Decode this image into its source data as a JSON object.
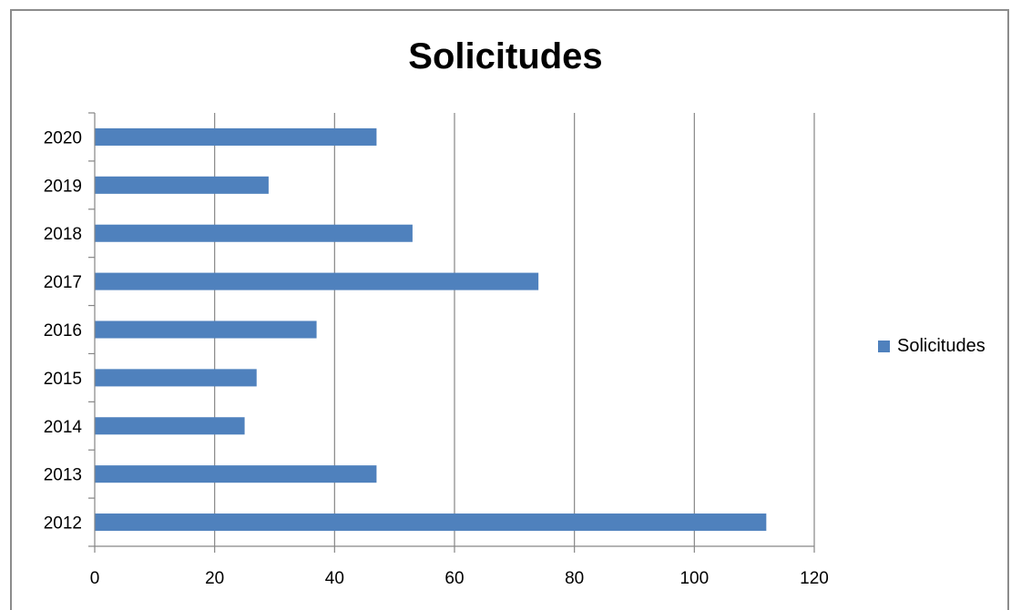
{
  "chart_data": {
    "type": "bar",
    "orientation": "horizontal",
    "title": "Solicitudes",
    "categories": [
      "2012",
      "2013",
      "2014",
      "2015",
      "2016",
      "2017",
      "2018",
      "2019",
      "2020"
    ],
    "series": [
      {
        "name": "Solicitudes",
        "values": [
          112,
          47,
          25,
          27,
          37,
          74,
          53,
          29,
          47
        ],
        "color": "#4f81bd"
      }
    ],
    "xlabel": "",
    "ylabel": "",
    "xlim": [
      0,
      120
    ],
    "xticks": [
      "0",
      "20",
      "40",
      "60",
      "80",
      "100",
      "120"
    ],
    "grid": "vertical",
    "legend_position": "right"
  }
}
